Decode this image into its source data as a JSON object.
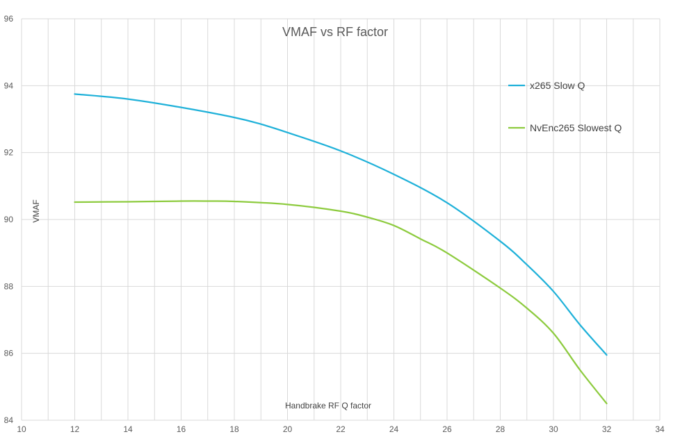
{
  "chart_data": {
    "type": "line",
    "title": "VMAF vs RF factor",
    "xlabel": "Handbrake RF Q factor",
    "ylabel": "VMAF",
    "xlim": [
      10,
      34
    ],
    "ylim": [
      84,
      96
    ],
    "xticks": [
      10,
      12,
      14,
      16,
      18,
      20,
      22,
      24,
      26,
      28,
      30,
      32,
      34
    ],
    "yticks": [
      84,
      86,
      88,
      90,
      92,
      94,
      96
    ],
    "x_minor_gridlines": [
      11,
      13,
      15,
      17,
      19,
      21,
      23,
      25,
      27,
      29,
      31,
      33
    ],
    "grid": true,
    "legend_position": "right",
    "series": [
      {
        "name": "x265 Slow Q",
        "color": "#1FB1D9",
        "x": [
          12,
          14,
          16,
          18,
          19,
          20,
          22,
          24,
          26,
          28,
          29,
          30,
          31,
          32
        ],
        "y": [
          93.75,
          93.6,
          93.35,
          93.05,
          92.85,
          92.6,
          92.05,
          91.35,
          90.5,
          89.35,
          88.65,
          87.85,
          86.85,
          85.95
        ]
      },
      {
        "name": "NvEnc265 Slowest Q",
        "color": "#8DCB3E",
        "x": [
          12,
          14,
          16,
          17,
          18,
          20,
          22,
          23,
          24,
          25,
          26,
          28,
          29,
          30,
          31,
          32
        ],
        "y": [
          90.52,
          90.53,
          90.55,
          90.55,
          90.54,
          90.45,
          90.25,
          90.07,
          89.82,
          89.42,
          89.0,
          87.95,
          87.35,
          86.6,
          85.5,
          84.5
        ]
      }
    ]
  }
}
